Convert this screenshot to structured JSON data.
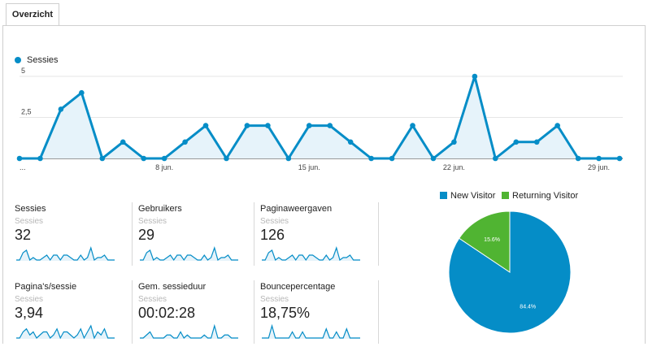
{
  "tabs": [
    {
      "label": "Overzicht"
    }
  ],
  "colors": {
    "primary": "#058dc7",
    "secondary": "#50b432",
    "grid": "#e6e6e6"
  },
  "chart_data": [
    {
      "type": "area",
      "series": [
        {
          "name": "Sessies",
          "values": [
            0,
            0,
            3,
            4,
            0,
            1,
            0,
            0,
            1,
            2,
            0,
            2,
            2,
            0,
            2,
            2,
            1,
            0,
            0,
            2,
            0,
            1,
            5,
            0,
            1,
            1,
            2,
            0,
            0,
            0
          ]
        }
      ],
      "ylim": [
        0,
        5
      ],
      "y_ticks": [
        {
          "value": 2.5,
          "label": "2,5"
        },
        {
          "value": 5,
          "label": "5"
        }
      ],
      "x_ticks": [
        {
          "index": 0,
          "label": "..."
        },
        {
          "index": 7,
          "label": "8 jun."
        },
        {
          "index": 14,
          "label": "15 jun."
        },
        {
          "index": 21,
          "label": "22 jun."
        },
        {
          "index": 28,
          "label": "29 jun."
        }
      ],
      "grid": true,
      "legend": "top-left"
    },
    {
      "type": "pie",
      "slices": [
        {
          "name": "New Visitor",
          "value": 84.4,
          "label": "84.4%",
          "color": "#058dc7"
        },
        {
          "name": "Returning Visitor",
          "value": 15.6,
          "label": "15.6%",
          "color": "#50b432"
        }
      ],
      "legend": "top"
    }
  ],
  "metrics": [
    {
      "title": "Sessies",
      "subtitle": "Sessies",
      "value": "32",
      "spark": [
        0,
        0,
        3,
        4,
        0,
        1,
        0,
        0,
        1,
        2,
        0,
        2,
        2,
        0,
        2,
        2,
        1,
        0,
        0,
        2,
        0,
        1,
        5,
        0,
        1,
        1,
        2,
        0,
        0,
        0
      ]
    },
    {
      "title": "Gebruikers",
      "subtitle": "Sessies",
      "value": "29",
      "spark": [
        0,
        0,
        3,
        4,
        0,
        1,
        0,
        0,
        1,
        2,
        0,
        2,
        2,
        0,
        2,
        2,
        1,
        0,
        0,
        2,
        0,
        1,
        5,
        0,
        1,
        1,
        2,
        0,
        0,
        0
      ]
    },
    {
      "title": "Paginaweergaven",
      "subtitle": "Sessies",
      "value": "126",
      "spark": [
        0,
        0,
        3,
        4,
        0,
        1,
        0,
        0,
        1,
        2,
        0,
        2,
        2,
        0,
        2,
        2,
        1,
        0,
        0,
        2,
        0,
        1,
        5,
        0,
        1,
        1,
        2,
        0,
        0,
        0
      ]
    },
    {
      "title": "Pagina's/sessie",
      "subtitle": "Sessies",
      "value": "3,94",
      "spark": [
        0,
        0,
        2,
        3,
        1,
        2,
        0,
        1,
        2,
        2,
        0,
        1,
        3,
        0,
        2,
        2,
        1,
        0,
        1,
        3,
        0,
        2,
        4,
        0,
        2,
        1,
        3,
        0,
        0,
        0
      ]
    },
    {
      "title": "Gem. sessieduur",
      "subtitle": "Sessies",
      "value": "00:02:28",
      "spark": [
        0,
        0,
        1,
        2,
        0,
        0,
        0,
        0,
        1,
        1,
        0,
        0,
        2,
        0,
        1,
        0,
        0,
        0,
        0,
        1,
        0,
        0,
        4,
        0,
        0,
        1,
        1,
        0,
        0,
        0
      ]
    },
    {
      "title": "Bouncepercentage",
      "subtitle": "Sessies",
      "value": "18,75%",
      "spark": [
        0,
        0,
        0,
        4,
        0,
        0,
        0,
        0,
        0,
        2,
        0,
        0,
        2,
        0,
        0,
        0,
        0,
        0,
        0,
        3,
        0,
        0,
        2,
        0,
        0,
        3,
        0,
        0,
        0,
        0
      ]
    }
  ]
}
